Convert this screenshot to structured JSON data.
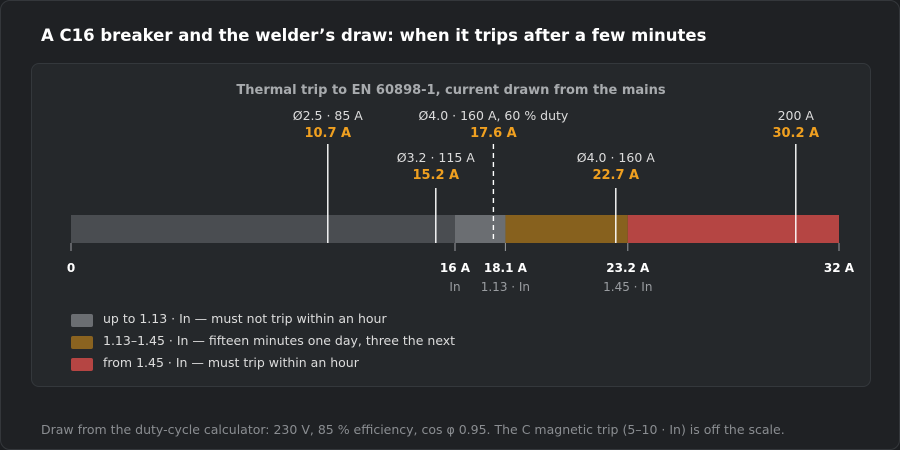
{
  "page": {
    "title": "A C16 breaker and the welder’s draw: when it trips after a few minutes",
    "footer": "Draw from the duty-cycle calculator: 230 V, 85 % efficiency, cos φ 0.95. The C magnetic trip (5–10 · In) is off the scale."
  },
  "colors": {
    "background": "#1c1e21",
    "panel": "#25282b",
    "accent_orange": "#f0a020",
    "no_trip_light": "#6b6e72",
    "marker_white": "#ffffff"
  },
  "chart_data": {
    "type": "bar",
    "title": "Thermal trip to EN 60898-1, current drawn from the mains",
    "unit": "A",
    "xlim": [
      0,
      32
    ],
    "zones": [
      {
        "from": 0,
        "to": 18.1,
        "label": "up to 1.13 · In — must not trip within an hour",
        "color": "#4a4d51"
      },
      {
        "from": 18.1,
        "to": 23.2,
        "label": "1.13–1.45 · In — fifteen minutes one day, three the next",
        "color": "#87611e"
      },
      {
        "from": 23.2,
        "to": 32,
        "label": "from 1.45 · In — must trip within an hour",
        "color": "#b54543"
      }
    ],
    "highlight_band": {
      "from": 16,
      "to": 18.1,
      "color": "#6b6e72"
    },
    "ticks": [
      {
        "value": 0,
        "label": "0",
        "sublabel": ""
      },
      {
        "value": 16,
        "label": "16 A",
        "sublabel": "In"
      },
      {
        "value": 18.1,
        "label": "18.1 A",
        "sublabel": "1.13 · In"
      },
      {
        "value": 23.2,
        "label": "23.2 A",
        "sublabel": "1.45 · In"
      },
      {
        "value": 32,
        "label": "32 A",
        "sublabel": ""
      }
    ],
    "markers": [
      {
        "value": 10.7,
        "label": "Ø2.5 · 85 A",
        "value_label": "10.7 A",
        "dashed": false,
        "tier": "high"
      },
      {
        "value": 15.2,
        "label": "Ø3.2 · 115 A",
        "value_label": "15.2 A",
        "dashed": false,
        "tier": "low"
      },
      {
        "value": 17.6,
        "label": "Ø4.0 · 160 A, 60 % duty",
        "value_label": "17.6 A",
        "dashed": true,
        "tier": "high"
      },
      {
        "value": 22.7,
        "label": "Ø4.0 · 160 A",
        "value_label": "22.7 A",
        "dashed": false,
        "tier": "low"
      },
      {
        "value": 30.2,
        "label": "200 A",
        "value_label": "30.2 A",
        "dashed": false,
        "tier": "high"
      }
    ]
  }
}
